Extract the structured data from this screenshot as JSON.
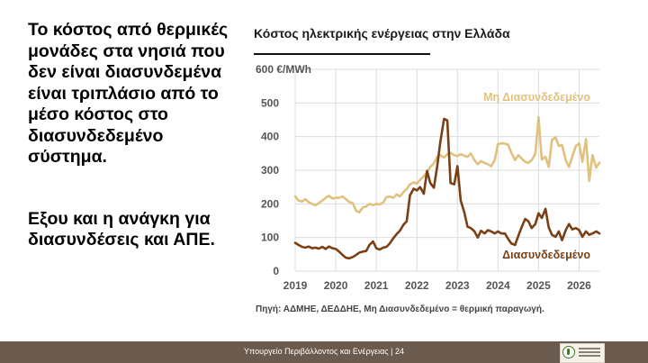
{
  "left_text": {
    "main": "Το κόστος από θερμικές μονάδες στα νησιά που δεν είναι διασυνδεμένα είναι τριπλάσιο από το μέσο κόστος στο διασυνδεδεμένο σύστημα.",
    "second": "Εξου και η ανάγκη για διασυνδέσεις και ΑΠΕ."
  },
  "footer": {
    "text": "Υπουργείο Περιβάλλοντος και Ενέργειας | 24"
  },
  "logo": {
    "icon": "ministry-logo-icon"
  },
  "chart_data": {
    "type": "line",
    "title": "Κόστος ηλεκτρικής ενέργειας στην Ελλάδα",
    "y_unit_label": "600 €/MWh",
    "ylim": [
      0,
      600
    ],
    "y_ticks": [
      0,
      100,
      200,
      300,
      400,
      500
    ],
    "y_tick_labels": [
      "0",
      "100",
      "200",
      "300",
      "400",
      "500"
    ],
    "xlim": [
      2019,
      2026.5
    ],
    "x_ticks": [
      2019,
      2020,
      2021,
      2022,
      2023,
      2024,
      2025,
      2026
    ],
    "x_tick_labels": [
      "2019",
      "2020",
      "2021",
      "2022",
      "2023",
      "2024",
      "2025",
      "2026"
    ],
    "grid": true,
    "source": "Πηγή: ΑΔΜΗΕ, ΔΕΔΔΗΕ, Μη Διασυνδεδεμένο = θερμική παραγωγή.",
    "series": [
      {
        "name": "Μη Διασυνδεδεμένο",
        "color": "#e0c27e",
        "label_position": "upper-right",
        "points": [
          [
            2019.0,
            222
          ],
          [
            2019.08,
            210
          ],
          [
            2019.17,
            207
          ],
          [
            2019.25,
            214
          ],
          [
            2019.33,
            205
          ],
          [
            2019.42,
            200
          ],
          [
            2019.5,
            196
          ],
          [
            2019.58,
            202
          ],
          [
            2019.67,
            210
          ],
          [
            2019.75,
            218
          ],
          [
            2019.83,
            224
          ],
          [
            2019.92,
            216
          ],
          [
            2020.0,
            218
          ],
          [
            2020.08,
            218
          ],
          [
            2020.17,
            222
          ],
          [
            2020.25,
            214
          ],
          [
            2020.33,
            206
          ],
          [
            2020.42,
            202
          ],
          [
            2020.5,
            180
          ],
          [
            2020.58,
            175
          ],
          [
            2020.67,
            190
          ],
          [
            2020.75,
            192
          ],
          [
            2020.83,
            200
          ],
          [
            2020.92,
            196
          ],
          [
            2021.0,
            200
          ],
          [
            2021.08,
            198
          ],
          [
            2021.17,
            204
          ],
          [
            2021.25,
            220
          ],
          [
            2021.33,
            222
          ],
          [
            2021.42,
            218
          ],
          [
            2021.5,
            228
          ],
          [
            2021.58,
            222
          ],
          [
            2021.67,
            235
          ],
          [
            2021.75,
            244
          ],
          [
            2021.83,
            258
          ],
          [
            2021.92,
            264
          ],
          [
            2022.0,
            260
          ],
          [
            2022.08,
            272
          ],
          [
            2022.17,
            282
          ],
          [
            2022.25,
            295
          ],
          [
            2022.33,
            310
          ],
          [
            2022.42,
            320
          ],
          [
            2022.5,
            340
          ],
          [
            2022.58,
            345
          ],
          [
            2022.67,
            338
          ],
          [
            2022.75,
            348
          ],
          [
            2022.83,
            352
          ],
          [
            2022.92,
            345
          ],
          [
            2023.0,
            342
          ],
          [
            2023.08,
            348
          ],
          [
            2023.17,
            343
          ],
          [
            2023.25,
            340
          ],
          [
            2023.33,
            350
          ],
          [
            2023.42,
            330
          ],
          [
            2023.5,
            318
          ],
          [
            2023.58,
            327
          ],
          [
            2023.67,
            322
          ],
          [
            2023.75,
            318
          ],
          [
            2023.83,
            312
          ],
          [
            2023.92,
            330
          ],
          [
            2024.0,
            378
          ],
          [
            2024.08,
            380
          ],
          [
            2024.17,
            379
          ],
          [
            2024.25,
            376
          ],
          [
            2024.33,
            352
          ],
          [
            2024.42,
            330
          ],
          [
            2024.5,
            345
          ],
          [
            2024.58,
            335
          ],
          [
            2024.67,
            325
          ],
          [
            2024.75,
            322
          ],
          [
            2024.83,
            330
          ],
          [
            2024.92,
            348
          ],
          [
            2025.0,
            458
          ],
          [
            2025.08,
            332
          ],
          [
            2025.17,
            340
          ],
          [
            2025.25,
            310
          ],
          [
            2025.33,
            390
          ],
          [
            2025.42,
            398
          ],
          [
            2025.5,
            372
          ],
          [
            2025.58,
            375
          ],
          [
            2025.67,
            330
          ],
          [
            2025.75,
            310
          ],
          [
            2025.83,
            340
          ],
          [
            2025.92,
            372
          ],
          [
            2026.0,
            380
          ],
          [
            2026.08,
            325
          ],
          [
            2026.17,
            393
          ],
          [
            2026.25,
            268
          ],
          [
            2026.33,
            345
          ],
          [
            2026.42,
            308
          ],
          [
            2026.5,
            322
          ]
        ]
      },
      {
        "name": "Διασυνδεδεμένο",
        "color": "#7a3f14",
        "label_position": "lower-right",
        "points": [
          [
            2019.0,
            84
          ],
          [
            2019.08,
            78
          ],
          [
            2019.17,
            72
          ],
          [
            2019.25,
            70
          ],
          [
            2019.33,
            73
          ],
          [
            2019.42,
            68
          ],
          [
            2019.5,
            70
          ],
          [
            2019.58,
            67
          ],
          [
            2019.67,
            72
          ],
          [
            2019.75,
            66
          ],
          [
            2019.83,
            73
          ],
          [
            2019.92,
            68
          ],
          [
            2020.0,
            66
          ],
          [
            2020.08,
            58
          ],
          [
            2020.17,
            48
          ],
          [
            2020.25,
            40
          ],
          [
            2020.33,
            38
          ],
          [
            2020.42,
            42
          ],
          [
            2020.5,
            48
          ],
          [
            2020.58,
            55
          ],
          [
            2020.67,
            58
          ],
          [
            2020.75,
            60
          ],
          [
            2020.83,
            78
          ],
          [
            2020.92,
            88
          ],
          [
            2021.0,
            68
          ],
          [
            2021.08,
            64
          ],
          [
            2021.17,
            70
          ],
          [
            2021.25,
            72
          ],
          [
            2021.33,
            82
          ],
          [
            2021.42,
            98
          ],
          [
            2021.5,
            110
          ],
          [
            2021.58,
            120
          ],
          [
            2021.67,
            138
          ],
          [
            2021.75,
            148
          ],
          [
            2021.83,
            225
          ],
          [
            2021.92,
            245
          ],
          [
            2022.0,
            240
          ],
          [
            2022.08,
            250
          ],
          [
            2022.17,
            230
          ],
          [
            2022.25,
            298
          ],
          [
            2022.33,
            262
          ],
          [
            2022.42,
            248
          ],
          [
            2022.5,
            310
          ],
          [
            2022.58,
            385
          ],
          [
            2022.67,
            453
          ],
          [
            2022.75,
            448
          ],
          [
            2022.83,
            262
          ],
          [
            2022.92,
            258
          ],
          [
            2023.0,
            312
          ],
          [
            2023.08,
            210
          ],
          [
            2023.17,
            175
          ],
          [
            2023.25,
            132
          ],
          [
            2023.33,
            128
          ],
          [
            2023.42,
            118
          ],
          [
            2023.5,
            100
          ],
          [
            2023.58,
            120
          ],
          [
            2023.67,
            112
          ],
          [
            2023.75,
            122
          ],
          [
            2023.83,
            118
          ],
          [
            2023.92,
            112
          ],
          [
            2024.0,
            118
          ],
          [
            2024.08,
            112
          ],
          [
            2024.17,
            112
          ],
          [
            2024.25,
            96
          ],
          [
            2024.33,
            82
          ],
          [
            2024.42,
            78
          ],
          [
            2024.5,
            105
          ],
          [
            2024.58,
            130
          ],
          [
            2024.67,
            155
          ],
          [
            2024.75,
            148
          ],
          [
            2024.83,
            128
          ],
          [
            2024.92,
            140
          ],
          [
            2025.0,
            172
          ],
          [
            2025.08,
            158
          ],
          [
            2025.17,
            185
          ],
          [
            2025.25,
            130
          ],
          [
            2025.33,
            108
          ],
          [
            2025.42,
            102
          ],
          [
            2025.5,
            118
          ],
          [
            2025.58,
            92
          ],
          [
            2025.67,
            122
          ],
          [
            2025.75,
            140
          ],
          [
            2025.83,
            124
          ],
          [
            2025.92,
            128
          ],
          [
            2026.0,
            122
          ],
          [
            2026.08,
            102
          ],
          [
            2026.17,
            118
          ],
          [
            2026.25,
            108
          ],
          [
            2026.33,
            112
          ],
          [
            2026.42,
            118
          ],
          [
            2026.5,
            112
          ]
        ]
      }
    ]
  }
}
